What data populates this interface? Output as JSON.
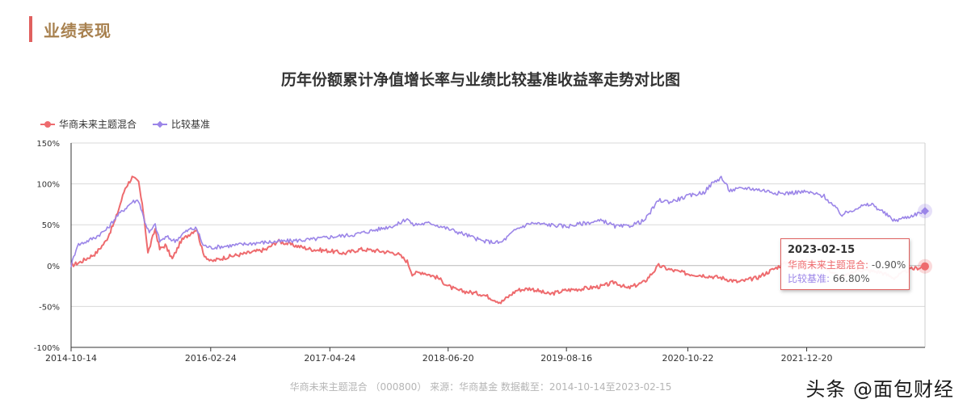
{
  "section": {
    "title": "业绩表现"
  },
  "chart_data": {
    "type": "line",
    "title": "历年份额累计净值增长率与业绩比较基准收益率走势对比图",
    "xlabel": "",
    "ylabel": "",
    "ylim": [
      -100,
      150
    ],
    "y_ticks": [
      "150%",
      "100%",
      "50%",
      "0%",
      "-50%",
      "-100%"
    ],
    "y_tick_values": [
      150,
      100,
      50,
      0,
      -50,
      -100
    ],
    "x_ticks": [
      "2014-10-14",
      "2016-02-24",
      "2017-04-24",
      "2018-06-20",
      "2019-08-16",
      "2020-10-22",
      "2021-12-20"
    ],
    "x_range": [
      "2014-10-14",
      "2023-02-15"
    ],
    "grid": true,
    "legend_position": "top-left",
    "series": [
      {
        "name": "华商未来主题混合",
        "color": "#ee6b6e",
        "points": [
          [
            "2014-10-14",
            0
          ],
          [
            "2014-11-20",
            5
          ],
          [
            "2015-01-10",
            15
          ],
          [
            "2015-02-15",
            30
          ],
          [
            "2015-03-20",
            55
          ],
          [
            "2015-04-25",
            95
          ],
          [
            "2015-05-20",
            108
          ],
          [
            "2015-06-12",
            102
          ],
          [
            "2015-07-03",
            55
          ],
          [
            "2015-07-15",
            15
          ],
          [
            "2015-08-10",
            45
          ],
          [
            "2015-08-26",
            20
          ],
          [
            "2015-09-15",
            25
          ],
          [
            "2015-10-10",
            8
          ],
          [
            "2015-11-10",
            30
          ],
          [
            "2015-12-15",
            40
          ],
          [
            "2016-01-05",
            45
          ],
          [
            "2016-01-28",
            15
          ],
          [
            "2016-02-24",
            5
          ],
          [
            "2016-04-15",
            10
          ],
          [
            "2016-06-30",
            15
          ],
          [
            "2016-09-10",
            20
          ],
          [
            "2016-10-20",
            30
          ],
          [
            "2016-12-15",
            25
          ],
          [
            "2017-02-15",
            20
          ],
          [
            "2017-04-24",
            18
          ],
          [
            "2017-06-15",
            15
          ],
          [
            "2017-08-10",
            20
          ],
          [
            "2017-10-15",
            18
          ],
          [
            "2017-12-20",
            15
          ],
          [
            "2018-01-25",
            5
          ],
          [
            "2018-02-12",
            -10
          ],
          [
            "2018-03-20",
            -8
          ],
          [
            "2018-05-15",
            -15
          ],
          [
            "2018-06-20",
            -25
          ],
          [
            "2018-07-20",
            -30
          ],
          [
            "2018-10-20",
            -35
          ],
          [
            "2018-12-25",
            -45
          ],
          [
            "2019-02-20",
            -30
          ],
          [
            "2019-04-10",
            -28
          ],
          [
            "2019-06-15",
            -35
          ],
          [
            "2019-08-16",
            -30
          ],
          [
            "2019-10-20",
            -28
          ],
          [
            "2019-12-25",
            -25
          ],
          [
            "2020-02-05",
            -20
          ],
          [
            "2020-03-20",
            -28
          ],
          [
            "2020-05-20",
            -20
          ],
          [
            "2020-07-10",
            0
          ],
          [
            "2020-08-20",
            -5
          ],
          [
            "2020-10-22",
            -10
          ],
          [
            "2020-12-20",
            -12
          ],
          [
            "2021-02-20",
            -15
          ],
          [
            "2021-04-20",
            -20
          ],
          [
            "2021-06-25",
            -15
          ],
          [
            "2021-08-20",
            -5
          ],
          [
            "2021-10-15",
            5
          ],
          [
            "2021-12-20",
            5
          ],
          [
            "2022-02-20",
            -2
          ],
          [
            "2022-04-25",
            -15
          ],
          [
            "2022-06-25",
            -5
          ],
          [
            "2022-09-10",
            -8
          ],
          [
            "2022-10-28",
            -15
          ],
          [
            "2022-12-20",
            -5
          ],
          [
            "2023-02-15",
            -0.9
          ]
        ]
      },
      {
        "name": "比较基准",
        "color": "#9b85e8",
        "points": [
          [
            "2014-10-14",
            0
          ],
          [
            "2014-11-05",
            25
          ],
          [
            "2014-12-10",
            30
          ],
          [
            "2015-01-10",
            35
          ],
          [
            "2015-02-20",
            45
          ],
          [
            "2015-03-25",
            60
          ],
          [
            "2015-04-25",
            70
          ],
          [
            "2015-05-20",
            78
          ],
          [
            "2015-06-12",
            80
          ],
          [
            "2015-07-03",
            55
          ],
          [
            "2015-07-20",
            40
          ],
          [
            "2015-08-10",
            50
          ],
          [
            "2015-08-26",
            30
          ],
          [
            "2015-09-20",
            35
          ],
          [
            "2015-10-20",
            30
          ],
          [
            "2015-11-20",
            40
          ],
          [
            "2015-12-15",
            45
          ],
          [
            "2016-01-05",
            45
          ],
          [
            "2016-01-28",
            25
          ],
          [
            "2016-02-24",
            22
          ],
          [
            "2016-05-20",
            25
          ],
          [
            "2016-08-10",
            28
          ],
          [
            "2016-11-20",
            30
          ],
          [
            "2017-02-20",
            32
          ],
          [
            "2017-04-24",
            35
          ],
          [
            "2017-07-20",
            38
          ],
          [
            "2017-10-20",
            45
          ],
          [
            "2017-12-20",
            50
          ],
          [
            "2018-01-25",
            58
          ],
          [
            "2018-02-12",
            50
          ],
          [
            "2018-04-20",
            52
          ],
          [
            "2018-06-20",
            45
          ],
          [
            "2018-08-20",
            38
          ],
          [
            "2018-10-20",
            30
          ],
          [
            "2018-12-25",
            28
          ],
          [
            "2019-02-20",
            45
          ],
          [
            "2019-04-10",
            52
          ],
          [
            "2019-06-15",
            50
          ],
          [
            "2019-08-16",
            48
          ],
          [
            "2019-10-20",
            52
          ],
          [
            "2019-12-25",
            55
          ],
          [
            "2020-02-05",
            48
          ],
          [
            "2020-03-20",
            48
          ],
          [
            "2020-05-20",
            55
          ],
          [
            "2020-07-10",
            80
          ],
          [
            "2020-08-20",
            78
          ],
          [
            "2020-10-22",
            85
          ],
          [
            "2020-12-20",
            90
          ],
          [
            "2021-01-15",
            100
          ],
          [
            "2021-02-18",
            108
          ],
          [
            "2021-03-20",
            92
          ],
          [
            "2021-05-20",
            95
          ],
          [
            "2021-07-20",
            92
          ],
          [
            "2021-09-20",
            88
          ],
          [
            "2021-11-20",
            90
          ],
          [
            "2021-12-20",
            90
          ],
          [
            "2022-02-20",
            85
          ],
          [
            "2022-04-25",
            62
          ],
          [
            "2022-06-25",
            72
          ],
          [
            "2022-08-10",
            75
          ],
          [
            "2022-09-20",
            65
          ],
          [
            "2022-10-28",
            55
          ],
          [
            "2022-12-20",
            60
          ],
          [
            "2023-02-15",
            66.8
          ]
        ]
      }
    ],
    "tooltip": {
      "date": "2023-02-15",
      "rows": [
        {
          "label": "华商未来主题混合:",
          "value": "-0.90%"
        },
        {
          "label": "比较基准:",
          "value": "66.80%"
        }
      ]
    }
  },
  "footer": "华商未来主题混合 （000800） 来源：华商基金 数据截至：2014-10-14至2023-02-15",
  "watermark": "头条 @面包财经"
}
